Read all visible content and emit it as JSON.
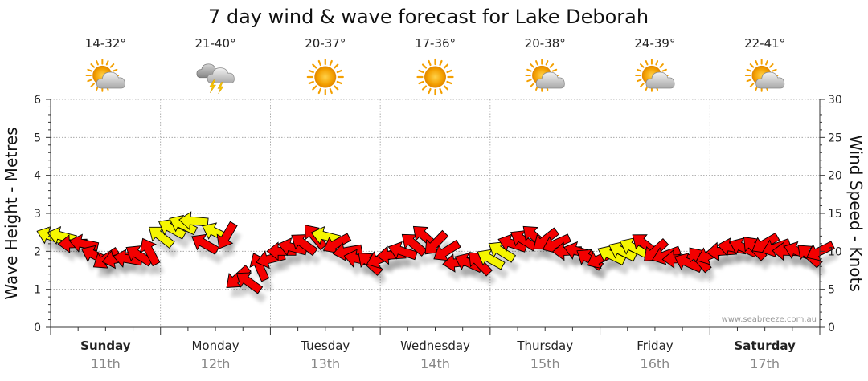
{
  "chart_data": {
    "type": "scatter",
    "title": "7 day wind & wave forecast for Lake Deborah",
    "ylabel_left": "Wave Height - Metres",
    "ylabel_right": "Wind Speed - Knots",
    "ylim_left": [
      0,
      6
    ],
    "ylim_right": [
      0,
      30
    ],
    "yticks_left": [
      "0",
      "1",
      "2",
      "3",
      "4",
      "5",
      "6"
    ],
    "yticks_right": [
      "0",
      "5",
      "10",
      "15",
      "20",
      "25",
      "30"
    ],
    "grid": true,
    "credit": "www.seabreeze.com.au",
    "days": [
      {
        "name": "Sunday",
        "date": "11th",
        "temp": "14-32°",
        "icon": "sun-cloud-icon",
        "bold": true
      },
      {
        "name": "Monday",
        "date": "12th",
        "temp": "21-40°",
        "icon": "thunderstorm-icon",
        "bold": false
      },
      {
        "name": "Tuesday",
        "date": "13th",
        "temp": "20-37°",
        "icon": "sun-icon",
        "bold": false
      },
      {
        "name": "Wednesday",
        "date": "14th",
        "temp": "17-36°",
        "icon": "sun-icon",
        "bold": false
      },
      {
        "name": "Thursday",
        "date": "15th",
        "temp": "20-38°",
        "icon": "sun-cloud-icon",
        "bold": false
      },
      {
        "name": "Friday",
        "date": "16th",
        "temp": "24-39°",
        "icon": "sun-cloud-icon",
        "bold": false
      },
      {
        "name": "Saturday",
        "date": "17th",
        "temp": "22-41°",
        "icon": "sun-cloud-icon",
        "bold": true
      }
    ],
    "series": [
      {
        "type": "wind",
        "x_day": [
          0.0,
          0.1,
          0.2,
          0.3,
          0.4,
          0.5,
          0.6,
          0.7,
          0.8,
          0.9,
          1.0,
          1.1,
          1.2,
          1.3,
          1.4,
          1.5,
          1.6,
          1.7,
          1.8,
          1.9,
          2.0,
          2.1,
          2.2,
          2.3,
          2.4,
          2.5,
          2.6,
          2.7,
          2.8,
          2.9,
          3.0,
          3.1,
          3.2,
          3.3,
          3.4,
          3.5,
          3.6,
          3.7,
          3.8,
          3.9,
          4.0,
          4.1,
          4.2,
          4.3,
          4.4,
          4.5,
          4.6,
          4.7,
          4.8,
          4.9,
          5.0,
          5.1,
          5.2,
          5.3,
          5.4,
          5.5,
          5.6,
          5.7,
          5.8,
          5.9,
          6.0,
          6.1,
          6.2,
          6.3,
          6.4,
          6.5,
          6.6,
          6.7,
          6.8,
          6.9,
          7.0
        ],
        "knots": [
          12,
          12,
          11,
          11,
          9.5,
          9,
          9,
          9,
          9.5,
          10,
          12,
          13,
          13.5,
          14,
          11,
          12.5,
          12,
          6.5,
          6,
          8,
          9,
          10,
          10.5,
          11,
          12,
          12,
          11,
          10,
          9,
          8.5,
          9,
          9.5,
          10,
          11,
          12,
          11,
          10,
          8.5,
          8.5,
          8.5,
          9,
          10,
          11,
          11.5,
          12,
          11.5,
          11,
          10,
          10,
          9,
          9,
          9.5,
          10,
          10.5,
          11,
          10,
          9.5,
          9,
          8.5,
          9,
          9.5,
          10,
          10.5,
          10.5,
          10.5,
          11,
          10.5,
          10,
          10,
          9.5,
          10
        ],
        "color_class": [
          "y",
          "y",
          "r",
          "r",
          "r",
          "r",
          "r",
          "r",
          "r",
          "r",
          "y",
          "y",
          "y",
          "y",
          "r",
          "y",
          "r",
          "r",
          "r",
          "r",
          "r",
          "r",
          "r",
          "r",
          "r",
          "y",
          "r",
          "r",
          "r",
          "r",
          "r",
          "r",
          "r",
          "r",
          "r",
          "r",
          "r",
          "r",
          "r",
          "r",
          "y",
          "y",
          "r",
          "r",
          "r",
          "r",
          "r",
          "r",
          "r",
          "r",
          "r",
          "y",
          "y",
          "y",
          "r",
          "r",
          "r",
          "r",
          "r",
          "r",
          "r",
          "r",
          "r",
          "r",
          "r",
          "r",
          "r",
          "r",
          "r",
          "r",
          "r"
        ]
      }
    ]
  }
}
